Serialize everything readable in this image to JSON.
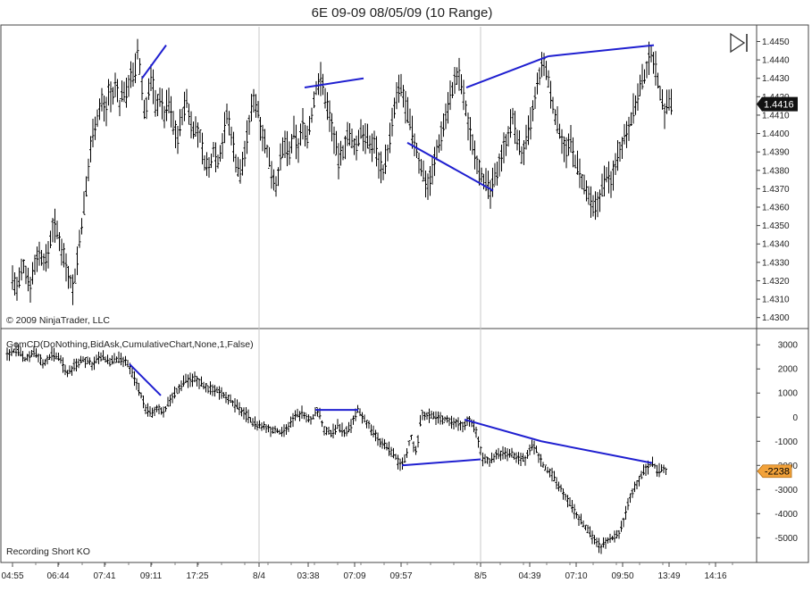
{
  "chart_data": [
    {
      "type": "ohlc",
      "title": "6E 09-09  08/05/09 (10 Range)",
      "copyright": "© 2009 NinjaTrader, LLC",
      "ylim": [
        1.4295,
        1.4458
      ],
      "y_ticks": [
        "1.4450",
        "1.4440",
        "1.4430",
        "1.4420",
        "1.4410",
        "1.4400",
        "1.4390",
        "1.4380",
        "1.4370",
        "1.4360",
        "1.4350",
        "1.4340",
        "1.4330",
        "1.4320",
        "1.4310",
        "1.4300"
      ],
      "y_tick_values": [
        1.445,
        1.444,
        1.443,
        1.442,
        1.441,
        1.44,
        1.439,
        1.438,
        1.437,
        1.436,
        1.435,
        1.434,
        1.433,
        1.432,
        1.431,
        1.43
      ],
      "last_price_label": "1.4416",
      "last_price": 1.4416,
      "path": [
        [
          0,
          1.4322
        ],
        [
          5,
          1.4315
        ],
        [
          12,
          1.4328
        ],
        [
          20,
          1.4318
        ],
        [
          28,
          1.4335
        ],
        [
          38,
          1.433
        ],
        [
          46,
          1.4352
        ],
        [
          55,
          1.4338
        ],
        [
          62,
          1.4325
        ],
        [
          68,
          1.4315
        ],
        [
          72,
          1.433
        ],
        [
          76,
          1.4345
        ],
        [
          80,
          1.436
        ],
        [
          84,
          1.4375
        ],
        [
          88,
          1.4395
        ],
        [
          92,
          1.4405
        ],
        [
          96,
          1.441
        ],
        [
          100,
          1.4418
        ],
        [
          104,
          1.441
        ],
        [
          108,
          1.4425
        ],
        [
          112,
          1.4418
        ],
        [
          116,
          1.4428
        ],
        [
          120,
          1.4415
        ],
        [
          124,
          1.4425
        ],
        [
          128,
          1.442
        ],
        [
          132,
          1.4435
        ],
        [
          136,
          1.4428
        ],
        [
          140,
          1.4445
        ],
        [
          144,
          1.443
        ],
        [
          148,
          1.441
        ],
        [
          152,
          1.4422
        ],
        [
          156,
          1.4432
        ],
        [
          160,
          1.4415
        ],
        [
          165,
          1.442
        ],
        [
          170,
          1.441
        ],
        [
          175,
          1.4418
        ],
        [
          180,
          1.4405
        ],
        [
          185,
          1.4398
        ],
        [
          190,
          1.441
        ],
        [
          195,
          1.4418
        ],
        [
          200,
          1.4405
        ],
        [
          205,
          1.4402
        ],
        [
          210,
          1.4398
        ],
        [
          215,
          1.4385
        ],
        [
          220,
          1.438
        ],
        [
          225,
          1.4392
        ],
        [
          230,
          1.4385
        ],
        [
          235,
          1.4395
        ],
        [
          240,
          1.441
        ],
        [
          245,
          1.44
        ],
        [
          250,
          1.4385
        ],
        [
          255,
          1.4378
        ],
        [
          260,
          1.439
        ],
        [
          265,
          1.4405
        ],
        [
          270,
          1.442
        ],
        [
          275,
          1.4412
        ],
        [
          280,
          1.44
        ],
        [
          285,
          1.439
        ],
        [
          290,
          1.438
        ],
        [
          295,
          1.4372
        ],
        [
          300,
          1.4385
        ],
        [
          305,
          1.4395
        ],
        [
          310,
          1.4388
        ],
        [
          315,
          1.44
        ],
        [
          320,
          1.4392
        ],
        [
          325,
          1.4405
        ],
        [
          330,
          1.4398
        ],
        [
          335,
          1.441
        ],
        [
          340,
          1.4425
        ],
        [
          345,
          1.443
        ],
        [
          350,
          1.442
        ],
        [
          355,
          1.441
        ],
        [
          360,
          1.4398
        ],
        [
          365,
          1.4385
        ],
        [
          370,
          1.439
        ],
        [
          375,
          1.44
        ],
        [
          380,
          1.4395
        ],
        [
          385,
          1.4392
        ],
        [
          390,
          1.4402
        ],
        [
          395,
          1.4398
        ],
        [
          400,
          1.4393
        ],
        [
          405,
          1.4395
        ],
        [
          410,
          1.4385
        ],
        [
          415,
          1.438
        ],
        [
          420,
          1.439
        ],
        [
          425,
          1.4405
        ],
        [
          430,
          1.442
        ],
        [
          435,
          1.4425
        ],
        [
          440,
          1.4415
        ],
        [
          445,
          1.4405
        ],
        [
          450,
          1.4395
        ],
        [
          455,
          1.4385
        ],
        [
          460,
          1.4378
        ],
        [
          465,
          1.4372
        ],
        [
          470,
          1.438
        ],
        [
          475,
          1.439
        ],
        [
          480,
          1.44
        ],
        [
          485,
          1.441
        ],
        [
          490,
          1.442
        ],
        [
          495,
          1.4428
        ],
        [
          500,
          1.4432
        ],
        [
          505,
          1.442
        ],
        [
          510,
          1.4405
        ],
        [
          515,
          1.4395
        ],
        [
          520,
          1.4385
        ],
        [
          525,
          1.4378
        ],
        [
          530,
          1.4372
        ],
        [
          535,
          1.4368
        ],
        [
          540,
          1.4375
        ],
        [
          545,
          1.4385
        ],
        [
          550,
          1.4392
        ],
        [
          555,
          1.44
        ],
        [
          560,
          1.4408
        ],
        [
          565,
          1.4398
        ],
        [
          570,
          1.4388
        ],
        [
          575,
          1.4395
        ],
        [
          580,
          1.4405
        ],
        [
          585,
          1.4418
        ],
        [
          590,
          1.4432
        ],
        [
          595,
          1.4438
        ],
        [
          600,
          1.4428
        ],
        [
          605,
          1.4415
        ],
        [
          610,
          1.4405
        ],
        [
          615,
          1.4398
        ],
        [
          620,
          1.439
        ],
        [
          625,
          1.4395
        ],
        [
          630,
          1.4385
        ],
        [
          635,
          1.4378
        ],
        [
          640,
          1.437
        ],
        [
          645,
          1.4365
        ],
        [
          650,
          1.4358
        ],
        [
          655,
          1.4362
        ],
        [
          660,
          1.437
        ],
        [
          665,
          1.4378
        ],
        [
          670,
          1.4372
        ],
        [
          675,
          1.4385
        ],
        [
          680,
          1.4392
        ],
        [
          685,
          1.4398
        ],
        [
          690,
          1.4405
        ],
        [
          695,
          1.4412
        ],
        [
          700,
          1.442
        ],
        [
          705,
          1.4428
        ],
        [
          710,
          1.4435
        ],
        [
          715,
          1.4445
        ],
        [
          718,
          1.444
        ],
        [
          722,
          1.443
        ],
        [
          726,
          1.442
        ],
        [
          730,
          1.4412
        ],
        [
          734,
          1.4418
        ],
        [
          738,
          1.4416
        ]
      ],
      "trend_lines": [
        [
          [
            145,
            1.443
          ],
          [
            172,
            1.4448
          ]
        ],
        [
          [
            327,
            1.4425
          ],
          [
            393,
            1.443
          ]
        ],
        [
          [
            442,
            1.4395
          ],
          [
            538,
            1.4369
          ]
        ],
        [
          [
            508,
            1.4425
          ],
          [
            600,
            1.4442
          ]
        ],
        [
          [
            600,
            1.4442
          ],
          [
            718,
            1.4448
          ]
        ]
      ]
    },
    {
      "type": "line",
      "indicator_label": "GomCD(DoNothing,BidAsk,CumulativeChart,None,1,False)",
      "note": "Recording Short KO",
      "ylim": [
        -5950,
        3600
      ],
      "y_ticks": [
        "3000",
        "2000",
        "1000",
        "0",
        "-1000",
        "-2000",
        "-3000",
        "-4000",
        "-5000"
      ],
      "y_tick_values": [
        3000,
        2000,
        1000,
        0,
        -1000,
        -2000,
        -3000,
        -4000,
        -5000
      ],
      "last_value_label": "-2238",
      "last_value": -2238,
      "path": [
        [
          0,
          2600
        ],
        [
          10,
          2800
        ],
        [
          20,
          2400
        ],
        [
          30,
          2700
        ],
        [
          40,
          2200
        ],
        [
          50,
          2600
        ],
        [
          60,
          2400
        ],
        [
          66,
          1800
        ],
        [
          75,
          2100
        ],
        [
          85,
          2400
        ],
        [
          95,
          2200
        ],
        [
          105,
          2500
        ],
        [
          115,
          2300
        ],
        [
          125,
          2400
        ],
        [
          135,
          2200
        ],
        [
          145,
          1400
        ],
        [
          150,
          900
        ],
        [
          155,
          400
        ],
        [
          162,
          100
        ],
        [
          170,
          400
        ],
        [
          176,
          200
        ],
        [
          182,
          700
        ],
        [
          190,
          1100
        ],
        [
          200,
          1500
        ],
        [
          210,
          1600
        ],
        [
          218,
          1400
        ],
        [
          225,
          1200
        ],
        [
          235,
          1100
        ],
        [
          245,
          900
        ],
        [
          255,
          500
        ],
        [
          265,
          200
        ],
        [
          275,
          -200
        ],
        [
          285,
          -400
        ],
        [
          295,
          -500
        ],
        [
          305,
          -600
        ],
        [
          315,
          -400
        ],
        [
          322,
          0
        ],
        [
          330,
          200
        ],
        [
          340,
          -100
        ],
        [
          348,
          300
        ],
        [
          355,
          -500
        ],
        [
          362,
          -700
        ],
        [
          370,
          -400
        ],
        [
          378,
          -600
        ],
        [
          385,
          -400
        ],
        [
          392,
          300
        ],
        [
          400,
          -100
        ],
        [
          408,
          -500
        ],
        [
          416,
          -1000
        ],
        [
          424,
          -1200
        ],
        [
          432,
          -1500
        ],
        [
          440,
          -2000
        ],
        [
          446,
          -1700
        ],
        [
          452,
          -800
        ],
        [
          458,
          -1500
        ],
        [
          464,
          200
        ],
        [
          470,
          100
        ],
        [
          480,
          0
        ],
        [
          490,
          -100
        ],
        [
          500,
          -200
        ],
        [
          510,
          -300
        ],
        [
          518,
          -100
        ],
        [
          526,
          -700
        ],
        [
          532,
          -1700
        ],
        [
          540,
          -1800
        ],
        [
          550,
          -1500
        ],
        [
          560,
          -1500
        ],
        [
          570,
          -1600
        ],
        [
          580,
          -1800
        ],
        [
          588,
          -1100
        ],
        [
          594,
          -1500
        ],
        [
          600,
          -2000
        ],
        [
          610,
          -2400
        ],
        [
          620,
          -3000
        ],
        [
          630,
          -3600
        ],
        [
          640,
          -4200
        ],
        [
          648,
          -4600
        ],
        [
          656,
          -5000
        ],
        [
          664,
          -5400
        ],
        [
          670,
          -5200
        ],
        [
          678,
          -5000
        ],
        [
          686,
          -4800
        ],
        [
          692,
          -4000
        ],
        [
          698,
          -3200
        ],
        [
          704,
          -2800
        ],
        [
          710,
          -2400
        ],
        [
          716,
          -2100
        ],
        [
          722,
          -1900
        ],
        [
          728,
          -2200
        ],
        [
          734,
          -2150
        ],
        [
          738,
          -2238
        ]
      ],
      "trend_lines": [
        [
          [
            137,
            2200
          ],
          [
            172,
            900
          ]
        ],
        [
          [
            345,
            300
          ],
          [
            393,
            300
          ]
        ],
        [
          [
            442,
            -2000
          ],
          [
            530,
            -1750
          ]
        ],
        [
          [
            512,
            -100
          ],
          [
            598,
            -1000
          ]
        ],
        [
          [
            598,
            -1000
          ],
          [
            722,
            -1900
          ]
        ]
      ]
    }
  ],
  "x_axis": {
    "ticks": [
      {
        "label": "04:55",
        "x": 14
      },
      {
        "label": "06:44",
        "x": 65
      },
      {
        "label": "07:41",
        "x": 117
      },
      {
        "label": "09:11",
        "x": 169
      },
      {
        "label": "17:25",
        "x": 221
      },
      {
        "label": "8/4",
        "x": 290
      },
      {
        "label": "03:38",
        "x": 345
      },
      {
        "label": "07:09",
        "x": 397
      },
      {
        "label": "09:57",
        "x": 449
      },
      {
        "label": "8/5",
        "x": 538
      },
      {
        "label": "04:39",
        "x": 593
      },
      {
        "label": "07:10",
        "x": 645
      },
      {
        "label": "09:50",
        "x": 697
      },
      {
        "label": "13:49",
        "x": 749
      },
      {
        "label": "14:16",
        "x": 801
      }
    ],
    "date_separators": [
      290,
      538
    ]
  },
  "colors": {
    "bars": "#000000",
    "trend": "#1f1fd0",
    "price_tag_bg": "#111111",
    "price_tag_fg": "#ffffff",
    "cd_tag_bg": "#f2a23a",
    "cd_tag_fg": "#000000",
    "separator": "#c8c8c8"
  },
  "icons": {
    "play_to_end": "play-to-end-icon"
  }
}
